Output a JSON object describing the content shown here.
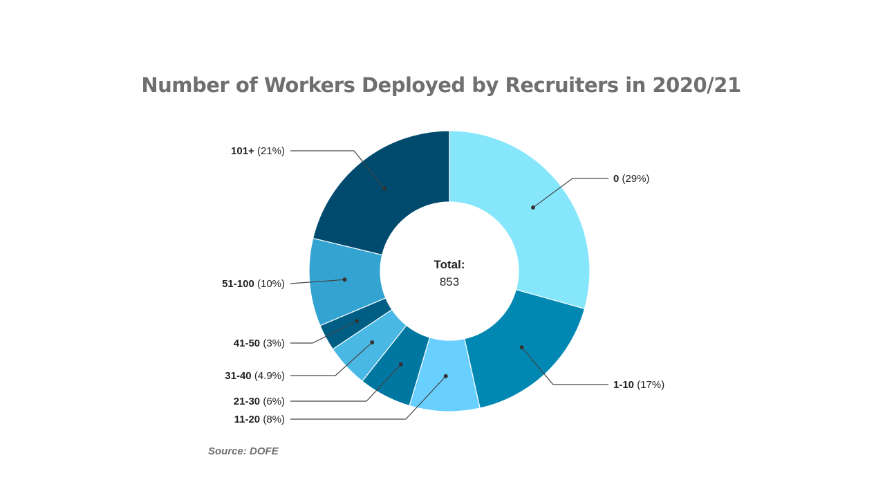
{
  "chart_data": {
    "type": "pie",
    "variant": "donut",
    "title": "Number of Workers Deployed by Recruiters in 2020/21",
    "center_label": "Total:",
    "center_value": "853",
    "slices": [
      {
        "label": "0",
        "pct_text": "(29%)",
        "value": 29,
        "color": "#85e6fc"
      },
      {
        "label": "1-10",
        "pct_text": "(17%)",
        "value": 17,
        "color": "#0088b2"
      },
      {
        "label": "11-20",
        "pct_text": "(8%)",
        "value": 8,
        "color": "#68cfff"
      },
      {
        "label": "21-30",
        "pct_text": "(6%)",
        "value": 6,
        "color": "#0077a0"
      },
      {
        "label": "31-40",
        "pct_text": "(4.9%)",
        "value": 4.9,
        "color": "#4ab8e4"
      },
      {
        "label": "41-50",
        "pct_text": "(3%)",
        "value": 3,
        "color": "#005e85"
      },
      {
        "label": "51-100",
        "pct_text": "(10%)",
        "value": 10,
        "color": "#33a3d1"
      },
      {
        "label": "101+",
        "pct_text": "(21%)",
        "value": 21,
        "color": "#004a6e"
      }
    ],
    "source": "Source: DOFE"
  }
}
